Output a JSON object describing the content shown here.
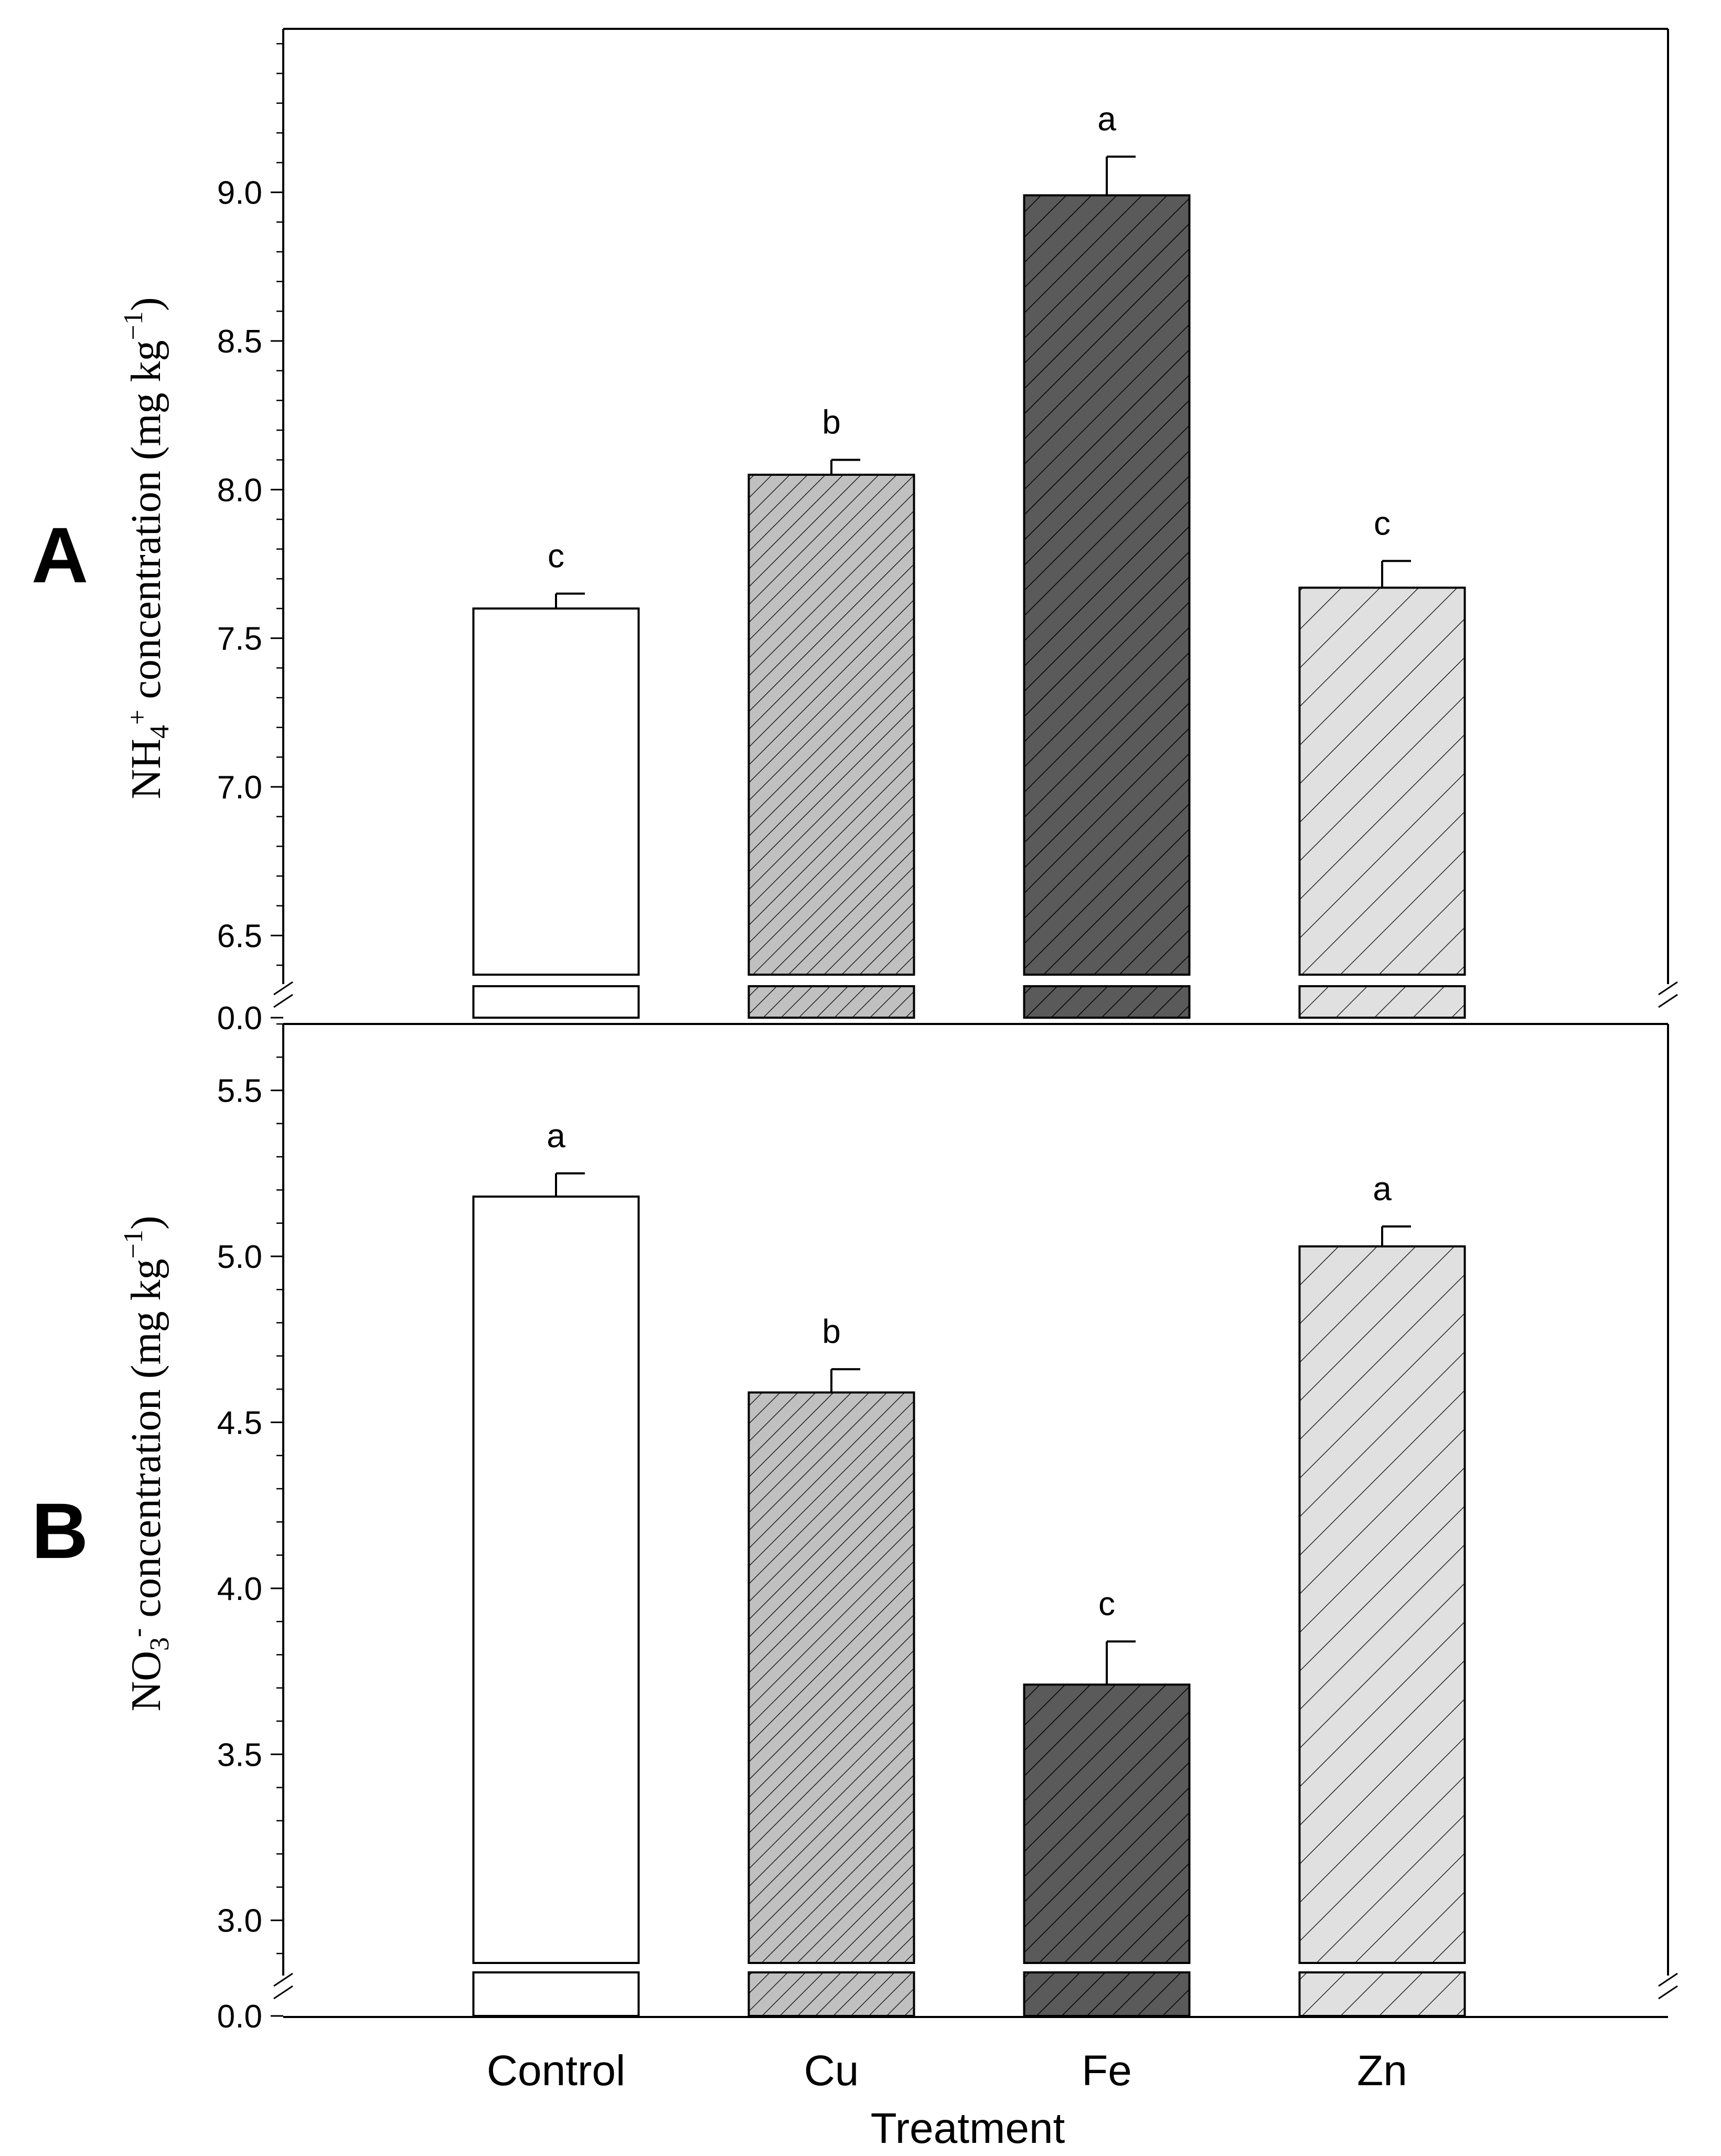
{
  "chart_data": [
    {
      "panel": "A",
      "type": "bar",
      "categories": [
        "Control",
        "Cu",
        "Fe",
        "Zn"
      ],
      "values": [
        7.6,
        8.05,
        8.99,
        7.67
      ],
      "errors": [
        0.05,
        0.05,
        0.13,
        0.09
      ],
      "significance": [
        "c",
        "b",
        "a",
        "c"
      ],
      "ylabel": {
        "pre": "NH",
        "sub": "4",
        "sup": "+",
        "post": " concentration (mg kg",
        "unit_sup": "−1",
        "close": ")"
      },
      "ylim": [
        6.4,
        9.55
      ],
      "yticks": [
        "6.5",
        "7.0",
        "7.5",
        "8.0",
        "8.5",
        "9.0"
      ],
      "axis_break": true,
      "break_tick": "0.0"
    },
    {
      "panel": "B",
      "type": "bar",
      "categories": [
        "Control",
        "Cu",
        "Fe",
        "Zn"
      ],
      "values": [
        5.18,
        4.59,
        3.71,
        5.03
      ],
      "errors": [
        0.07,
        0.07,
        0.13,
        0.06
      ],
      "significance": [
        "a",
        "b",
        "c",
        "a"
      ],
      "ylabel": {
        "pre": "NO",
        "sub": "3",
        "sup": "-",
        "post": " concentration (mg kg",
        "unit_sup": "−1",
        "close": ")"
      },
      "ylim": [
        2.9,
        5.7
      ],
      "yticks": [
        "3.0",
        "3.5",
        "4.0",
        "4.5",
        "5.0",
        "5.5"
      ],
      "axis_break": true,
      "break_tick": "0.0"
    }
  ],
  "xlabel": "Treatment",
  "styles": [
    {
      "fill": "#ffffff",
      "hatch": "none"
    },
    {
      "fill": "#c0c0c0",
      "hatch": "dense"
    },
    {
      "fill": "#5a5a5a",
      "hatch": "medium"
    },
    {
      "fill": "#e0e0e0",
      "hatch": "sparse"
    }
  ]
}
